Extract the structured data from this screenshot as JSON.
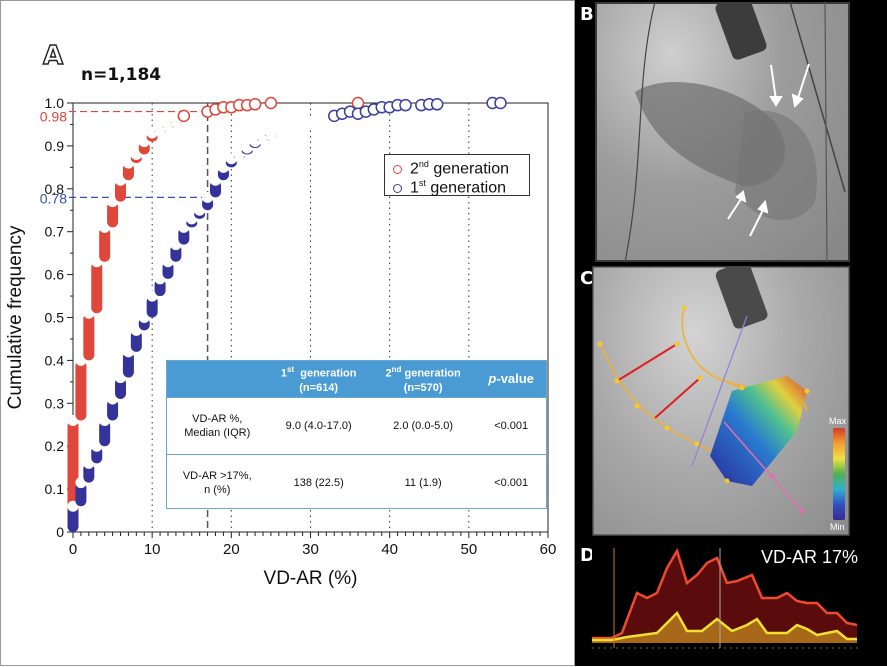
{
  "panels": {
    "a": "A",
    "b": "B",
    "c": "C",
    "d": "D"
  },
  "sample_label": "n=1,184",
  "legend": [
    {
      "base": "2",
      "sup": "nd",
      "text": " generation",
      "color": "#e0473a"
    },
    {
      "base": "1",
      "sup": "st",
      "text": " generation",
      "color": "#3a3fa0"
    }
  ],
  "table": {
    "headers": [
      {
        "base": "",
        "sup": "",
        "rest": ""
      },
      {
        "base": "1",
        "sup": "st",
        "rest": "  generation",
        "line2": "(n=614)"
      },
      {
        "base": "2",
        "sup": "nd",
        "rest": " generation",
        "line2": "(n=570)"
      },
      {
        "italic": "p",
        "rest": "-value"
      }
    ],
    "rows": [
      {
        "label1": "VD-AR %,",
        "label2": "Median (IQR)",
        "gen1": "9.0 (4.0-17.0)",
        "gen2": "2.0 (0.0-5.0)",
        "p": "<0.001"
      },
      {
        "label1": "VD-AR >17%,",
        "label2": "n (%)",
        "gen1": "138 (22.5)",
        "gen2": "11 (1.9)",
        "p": "<0.001"
      }
    ]
  },
  "colorbar": {
    "max_label": "Max",
    "min_label": "Min"
  },
  "panel_d_label": "VD-AR  17%",
  "chart_data": {
    "type": "scatter",
    "title": "",
    "xlabel": "VD-AR (%)",
    "ylabel": "Cumulative frequency",
    "xlim": [
      0,
      60
    ],
    "ylim": [
      0,
      1.0
    ],
    "xticks": [
      0,
      10,
      20,
      30,
      40,
      50,
      60
    ],
    "yticks": [
      0,
      0.1,
      0.2,
      0.3,
      0.4,
      0.5,
      0.6,
      0.7,
      0.8,
      0.9,
      1.0
    ],
    "ytick_labels": [
      "0",
      "0.1",
      "0.2",
      "0.3",
      "0.4",
      "0.5",
      "0.6",
      "0.7",
      "0.8",
      "0.9",
      "1.0"
    ],
    "grid": "vertical-dotted at 10, 20, 30, 40, 50",
    "legend_position": "center-right",
    "reference_lines": [
      {
        "axis": "x",
        "value": 17,
        "style": "dashed",
        "color": "#555555"
      },
      {
        "axis": "y",
        "value": 0.98,
        "label": "0.98",
        "color": "#e0473a",
        "style": "dashed"
      },
      {
        "axis": "y",
        "value": 0.78,
        "label": "0.78",
        "color": "#3a50b0",
        "style": "dashed"
      }
    ],
    "series": [
      {
        "name": "2nd generation",
        "color": "#e0473a",
        "x": [
          0,
          1,
          2,
          3,
          4,
          5,
          6,
          7,
          8,
          9,
          10,
          11,
          12,
          13,
          14,
          17,
          18,
          19,
          20,
          21,
          22,
          23,
          25,
          36
        ],
        "y": [
          0.26,
          0.4,
          0.51,
          0.63,
          0.71,
          0.77,
          0.82,
          0.86,
          0.88,
          0.91,
          0.93,
          0.94,
          0.95,
          0.96,
          0.97,
          0.98,
          0.985,
          0.99,
          0.99,
          0.995,
          0.995,
          0.997,
          1.0,
          1.0
        ]
      },
      {
        "name": "1st generation",
        "color": "#3a3fa0",
        "x": [
          0,
          1,
          2,
          3,
          4,
          5,
          6,
          7,
          8,
          9,
          10,
          11,
          12,
          13,
          14,
          15,
          16,
          17,
          18,
          19,
          20,
          21,
          22,
          23,
          24,
          25,
          26,
          27,
          28,
          29,
          30,
          31,
          32,
          33,
          34,
          35,
          36,
          37,
          38,
          39,
          40,
          41,
          42,
          44,
          45,
          46,
          53,
          54
        ],
        "y": [
          0.06,
          0.115,
          0.16,
          0.2,
          0.26,
          0.31,
          0.36,
          0.42,
          0.47,
          0.5,
          0.55,
          0.59,
          0.63,
          0.67,
          0.71,
          0.73,
          0.75,
          0.78,
          0.82,
          0.85,
          0.87,
          0.88,
          0.895,
          0.91,
          0.92,
          0.93,
          0.935,
          0.94,
          0.945,
          0.95,
          0.955,
          0.96,
          0.965,
          0.97,
          0.975,
          0.98,
          0.975,
          0.98,
          0.985,
          0.99,
          0.99,
          0.995,
          0.995,
          0.995,
          0.997,
          0.997,
          1.0,
          1.0
        ]
      }
    ]
  }
}
